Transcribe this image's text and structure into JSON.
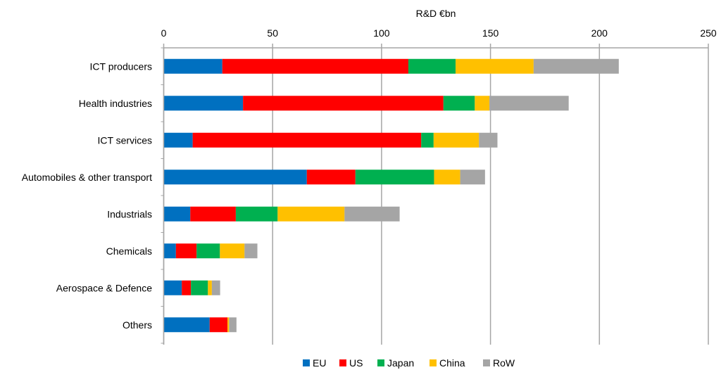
{
  "chart_data": {
    "type": "bar",
    "orientation": "horizontal",
    "stacked": true,
    "title": "",
    "xlabel": "R&D €bn",
    "ylabel": "",
    "xlim": [
      0,
      250
    ],
    "xticks": [
      "0",
      "50",
      "100",
      "150",
      "200",
      "250"
    ],
    "xtick_values": [
      0,
      50,
      100,
      150,
      200,
      250
    ],
    "grid": true,
    "legend_position": "bottom",
    "categories": [
      "ICT producers",
      "Health industries",
      "ICT services",
      "Automobiles & other transport",
      "Industrials",
      "Chemicals",
      "Aerospace & Defence",
      "Others"
    ],
    "series": [
      {
        "name": "EU",
        "color": "#0070C0",
        "values": [
          26.9,
          36.4,
          13.3,
          65.7,
          12.2,
          5.6,
          8.3,
          21.1
        ]
      },
      {
        "name": "US",
        "color": "#FF0000",
        "values": [
          85.4,
          92.0,
          104.9,
          22.3,
          20.9,
          9.5,
          4.2,
          8.2
        ]
      },
      {
        "name": "Japan",
        "color": "#00B050",
        "values": [
          21.7,
          14.4,
          5.7,
          36.1,
          19.2,
          10.7,
          7.8,
          0.0
        ]
      },
      {
        "name": "China",
        "color": "#FFC000",
        "values": [
          35.8,
          6.7,
          20.8,
          12.0,
          30.7,
          11.3,
          1.8,
          0.7
        ]
      },
      {
        "name": "RoW",
        "color": "#A5A5A5",
        "values": [
          39.1,
          36.4,
          8.5,
          11.4,
          25.3,
          5.9,
          3.8,
          3.4
        ]
      }
    ]
  }
}
